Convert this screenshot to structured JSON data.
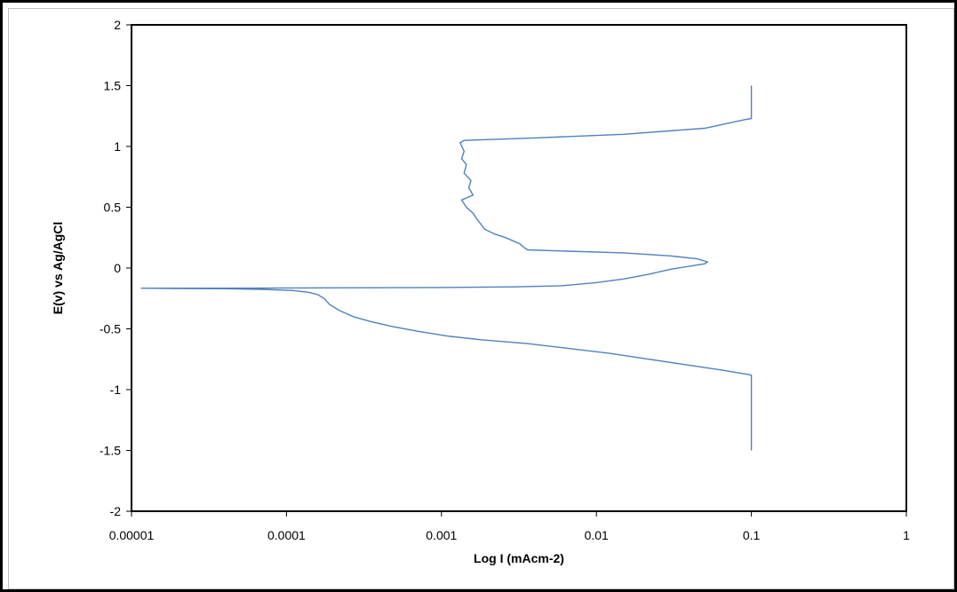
{
  "chart_data": {
    "type": "line",
    "title": "",
    "xlabel": "Log I (mAcm-2)",
    "ylabel": "E(v) vs Ag/AgCl",
    "x_scale": "log",
    "xlim": [
      1e-05,
      1
    ],
    "ylim": [
      -2,
      2
    ],
    "x_ticks": [
      "0.00001",
      "0.0001",
      "0.001",
      "0.01",
      "0.1",
      "1"
    ],
    "y_ticks": [
      "2",
      "1.5",
      "1",
      "0.5",
      "0",
      "-0.5",
      "-1",
      "-1.5",
      "-2"
    ],
    "grid": false,
    "legend": "none",
    "line_color": "#4f81bd",
    "series": [
      {
        "values": [
          [
            0.1,
            -1.5
          ],
          [
            0.1,
            -0.88
          ],
          [
            0.09,
            -0.87
          ],
          [
            0.065,
            -0.84
          ],
          [
            0.04,
            -0.8
          ],
          [
            0.022,
            -0.75
          ],
          [
            0.012,
            -0.7
          ],
          [
            0.0065,
            -0.66
          ],
          [
            0.0035,
            -0.62
          ],
          [
            0.0018,
            -0.59
          ],
          [
            0.0011,
            -0.56
          ],
          [
            0.0007,
            -0.52
          ],
          [
            0.00048,
            -0.48
          ],
          [
            0.00035,
            -0.44
          ],
          [
            0.00027,
            -0.4
          ],
          [
            0.00022,
            -0.35
          ],
          [
            0.00019,
            -0.3
          ],
          [
            0.000175,
            -0.25
          ],
          [
            0.00016,
            -0.22
          ],
          [
            0.00014,
            -0.2
          ],
          [
            0.00011,
            -0.185
          ],
          [
            7e-05,
            -0.175
          ],
          [
            4e-05,
            -0.17
          ],
          [
            2e-05,
            -0.168
          ],
          [
            1.15e-05,
            -0.166
          ],
          [
            4e-05,
            -0.166
          ],
          [
            0.0002,
            -0.163
          ],
          [
            0.001,
            -0.16
          ],
          [
            0.003,
            -0.155
          ],
          [
            0.006,
            -0.145
          ],
          [
            0.01,
            -0.12
          ],
          [
            0.015,
            -0.09
          ],
          [
            0.022,
            -0.05
          ],
          [
            0.03,
            -0.01
          ],
          [
            0.042,
            0.02
          ],
          [
            0.05,
            0.035
          ],
          [
            0.052,
            0.05
          ],
          [
            0.045,
            0.075
          ],
          [
            0.03,
            0.1
          ],
          [
            0.015,
            0.125
          ],
          [
            0.006,
            0.14
          ],
          [
            0.0036,
            0.15
          ],
          [
            0.0034,
            0.17
          ],
          [
            0.0032,
            0.2
          ],
          [
            0.0026,
            0.25
          ],
          [
            0.0022,
            0.28
          ],
          [
            0.0019,
            0.32
          ],
          [
            0.0017,
            0.4
          ],
          [
            0.0016,
            0.45
          ],
          [
            0.00145,
            0.5
          ],
          [
            0.00135,
            0.56
          ],
          [
            0.0016,
            0.6
          ],
          [
            0.0015,
            0.66
          ],
          [
            0.00155,
            0.72
          ],
          [
            0.0014,
            0.78
          ],
          [
            0.00145,
            0.85
          ],
          [
            0.00135,
            0.9
          ],
          [
            0.0014,
            0.96
          ],
          [
            0.00132,
            1.03
          ],
          [
            0.0014,
            1.05
          ],
          [
            0.004,
            1.07
          ],
          [
            0.015,
            1.1
          ],
          [
            0.05,
            1.15
          ],
          [
            0.09,
            1.22
          ],
          [
            0.1,
            1.23
          ],
          [
            0.1,
            1.5
          ]
        ]
      }
    ]
  }
}
